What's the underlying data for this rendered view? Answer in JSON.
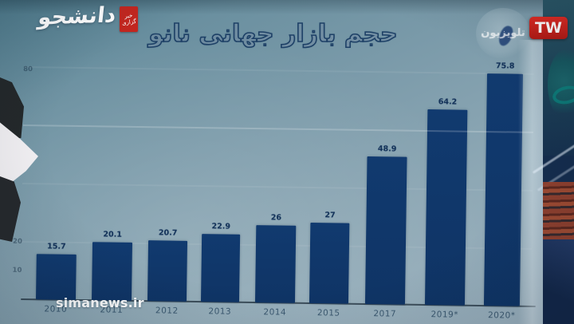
{
  "branding": {
    "agency_logo_name": "دانشجو",
    "agency_badge_line1": "خبر",
    "agency_badge_line2": "گزاری",
    "channel_badge": "TW",
    "globe_watermark_text": "تلویزیون"
  },
  "watermark": {
    "site_url": "simanews.ir"
  },
  "chart_data": {
    "type": "bar",
    "title": "حجم بازار جهانی نانو",
    "categories": [
      "2010",
      "2011",
      "2012",
      "2013",
      "2014",
      "2015",
      "2017",
      "2019*",
      "2020*"
    ],
    "values": [
      15.7,
      20.1,
      20.7,
      22.9,
      26,
      27,
      48.9,
      64.2,
      75.8
    ],
    "value_labels": [
      "15.7",
      "20.1",
      "20.7",
      "22.9",
      "26",
      "27",
      "48.9",
      "64.2",
      "75.8"
    ],
    "ylim": [
      0,
      80
    ],
    "y_ticks_visible": [
      {
        "label": "80",
        "value": 80
      },
      {
        "label": "20",
        "value": 20
      },
      {
        "label": "10",
        "value": 10
      }
    ],
    "gridline_values": [
      20,
      40,
      60,
      80
    ],
    "xlabel": "",
    "ylabel": "",
    "legend_position": "none",
    "grid": "faint",
    "bar_color": "#113a6f"
  },
  "colors": {
    "bar": "#113a6f",
    "badge_red": "#c3261f",
    "tw_red": "#d01f1f",
    "screen_top": "#54808f",
    "screen_bottom": "#9db3c0",
    "studio_dark": "#142c4d"
  }
}
